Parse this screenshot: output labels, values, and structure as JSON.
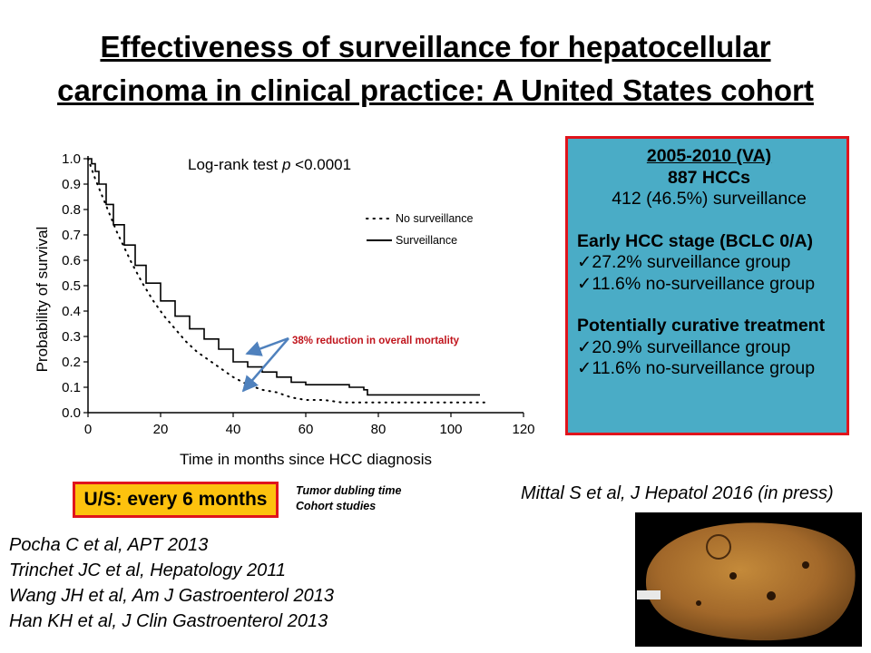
{
  "slide": {
    "title_line1": "Effectiveness of surveillance for hepatocellular",
    "title_line2": "carcinoma in clinical practice: A United States cohort"
  },
  "chart_data": {
    "type": "line",
    "xlabel": "Time in months since HCC diagnosis",
    "ylabel": "Probability of survival",
    "xlim": [
      0,
      120
    ],
    "ylim": [
      0,
      1.0
    ],
    "xticks": [
      0,
      20,
      40,
      60,
      80,
      100,
      120
    ],
    "yticks": [
      0.0,
      0.1,
      0.2,
      0.3,
      0.4,
      0.5,
      0.6,
      0.7,
      0.8,
      0.9,
      1.0
    ],
    "ytick_labels": [
      "0.0",
      "0.1",
      "0.2",
      "0.3",
      "0.4",
      "0.5",
      "0.6",
      "0.7",
      "0.8",
      "0.9",
      "1.0"
    ],
    "grid": false,
    "legend_position": "right",
    "stat_prefix": "Log-rank test ",
    "stat_p": "p",
    "stat_suffix": " <0.0001",
    "annotation": "38% reduction in overall mortality",
    "colors": {
      "annotation_text": "#c0141c",
      "arrow": "#4f81bd",
      "axis": "#000000"
    },
    "series": [
      {
        "name": "No surveillance",
        "style": "dotted",
        "x": [
          0,
          1,
          2,
          4,
          6,
          8,
          10,
          12,
          15,
          18,
          21,
          24,
          27,
          30,
          33,
          36,
          40,
          44,
          48,
          52,
          56,
          60,
          65,
          70,
          75,
          80,
          90,
          100,
          110
        ],
        "y": [
          1.0,
          0.96,
          0.92,
          0.85,
          0.78,
          0.71,
          0.65,
          0.59,
          0.51,
          0.44,
          0.38,
          0.33,
          0.28,
          0.24,
          0.21,
          0.18,
          0.14,
          0.11,
          0.09,
          0.08,
          0.06,
          0.05,
          0.05,
          0.04,
          0.04,
          0.04,
          0.04,
          0.04,
          0.04
        ]
      },
      {
        "name": "Surveillance",
        "style": "solid",
        "x": [
          0,
          1,
          2,
          3,
          5,
          7,
          10,
          13,
          16,
          20,
          24,
          28,
          32,
          36,
          40,
          44,
          48,
          52,
          56,
          60,
          64,
          68,
          72,
          76,
          77,
          90,
          100,
          108
        ],
        "y": [
          1.0,
          0.98,
          0.95,
          0.9,
          0.82,
          0.74,
          0.66,
          0.58,
          0.51,
          0.44,
          0.38,
          0.33,
          0.29,
          0.25,
          0.2,
          0.18,
          0.16,
          0.14,
          0.12,
          0.11,
          0.11,
          0.11,
          0.1,
          0.09,
          0.07,
          0.07,
          0.07,
          0.07
        ]
      }
    ]
  },
  "infobox": {
    "period": "2005-2010 (VA)",
    "count": "887 HCCs",
    "surveillance": "412 (46.5%) surveillance",
    "early_heading": "Early HCC stage (BCLC 0/A)",
    "early_1": "27.2% surveillance group",
    "early_2": "11.6% no-surveillance group",
    "curative_heading": "Potentially curative treatment",
    "curative_1": "20.9% surveillance group",
    "curative_2": "11.6% no-surveillance group",
    "colors": {
      "background": "#4aacc6",
      "border": "#e0141c"
    }
  },
  "us_box": {
    "label": "U/S: every 6 months",
    "colors": {
      "background": "#fdc20e",
      "border": "#e0141c"
    }
  },
  "note": {
    "line1": "Tumor dubling time",
    "line2": "Cohort studies"
  },
  "citation": "Mittal S et al, J Hepatol 2016 (in press)",
  "references": [
    "Pocha C et al, APT 2013",
    "Trinchet JC et al, Hepatology 2011",
    "Wang JH et al, Am J Gastroenterol 2013",
    "Han KH et al, J Clin Gastroenterol 2013"
  ]
}
